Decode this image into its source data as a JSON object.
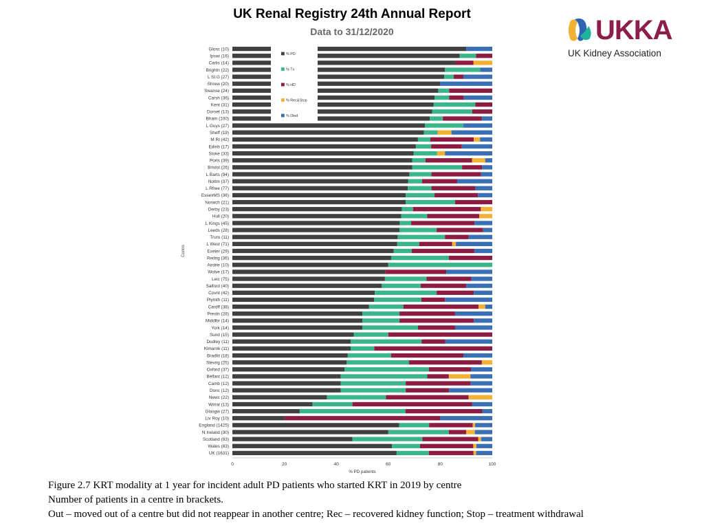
{
  "header": {
    "title": "UK Renal Registry 24th Annual Report",
    "subtitle": "Data to 31/12/2020"
  },
  "logo": {
    "wordmark": "UKKA",
    "caption": "UK Kidney Association",
    "colors": [
      "#f2b134",
      "#2f64b2",
      "#1fb59a",
      "#8b1e4a"
    ]
  },
  "captions": [
    "Figure 2.7 KRT modality at 1 year for incident adult PD patients who started KRT in 2019 by centre",
    "Number of patients in a centre in brackets.",
    "Out – moved out of a centre but did not reappear in another centre; Rec – recovered kidney function; Stop – treatment withdrawal"
  ],
  "chart_data": {
    "type": "bar",
    "orientation": "horizontal",
    "stacked": true,
    "xlabel": "% PD patients",
    "ylabel": "Centre",
    "xlim": [
      0,
      100
    ],
    "xticks": [
      0,
      20,
      40,
      60,
      80,
      100
    ],
    "legend_position": "top-left, inside plot",
    "series": [
      {
        "name": "% PD",
        "color": "#404040"
      },
      {
        "name": "% Tx",
        "color": "#3bb58a"
      },
      {
        "name": "% HD",
        "color": "#8c1c42"
      },
      {
        "name": "% Rec&Stop",
        "color": "#f2b134"
      },
      {
        "name": "% Died",
        "color": "#3a6fb3"
      }
    ],
    "categories": [
      "Glosc (10)",
      "Ipswi (16)",
      "Carlis (14)",
      "Brightn (22)",
      "L St.G (27)",
      "Shrew (20)",
      "Swanse (24)",
      "Carsh (36)",
      "Kent (31)",
      "Dorset (13)",
      "Bham (100)",
      "L Guys (27)",
      "Sheff (19)",
      "M RI (42)",
      "Edinb (17)",
      "Stoke (33)",
      "Ports (39)",
      "Bristol (26)",
      "L Barts (94)",
      "Nottm (37)",
      "L Rfree (77)",
      "EssexMS (36)",
      "Norwch (21)",
      "Derby (23)",
      "Hull (20)",
      "L Kings (45)",
      "Leeds (28)",
      "Truro (11)",
      "L West (71)",
      "Exeter (29)",
      "Redng (36)",
      "Airdrie (10)",
      "Wolve (17)",
      "Leic (75)",
      "Salford (40)",
      "Covnt (42)",
      "Plymth (11)",
      "Cardff (38)",
      "Prestn (28)",
      "Middlbr (14)",
      "York (14)",
      "Sund (15)",
      "Dudley (11)",
      "Klmarnk (11)",
      "Bradfd (18)",
      "Stevng (25)",
      "Oxford (37)",
      "Belfast (12)",
      "Camb (12)",
      "Donc (12)",
      "Newc (22)",
      "Wirral (13)",
      "Glasgw (27)",
      "Liv Roy (10)",
      "England (1425)",
      "N Ireland (30)",
      "Scotland (93)",
      "Wales (83)",
      "UK (1631)"
    ],
    "values": [
      [
        90,
        0,
        0,
        0,
        10
      ],
      [
        87.5,
        6.25,
        6.25,
        0,
        0
      ],
      [
        85.7,
        0,
        7.1,
        7.2,
        0
      ],
      [
        81.8,
        13.6,
        0,
        0,
        4.6
      ],
      [
        81.5,
        3.7,
        3.7,
        0,
        11.1
      ],
      [
        80,
        0,
        0,
        0,
        20
      ],
      [
        79.2,
        4.2,
        16.6,
        0,
        0
      ],
      [
        77.8,
        5.6,
        5.6,
        0,
        11
      ],
      [
        77.4,
        16.1,
        6.5,
        0,
        0
      ],
      [
        76.9,
        15.4,
        7.7,
        0,
        0
      ],
      [
        76,
        5,
        15,
        0,
        4
      ],
      [
        74.1,
        14.8,
        0,
        0,
        11.1
      ],
      [
        73.7,
        5.3,
        0,
        5.3,
        15.7
      ],
      [
        71.4,
        4.8,
        16.7,
        2.4,
        4.7
      ],
      [
        70.6,
        5.9,
        11.8,
        0,
        11.7
      ],
      [
        69.7,
        9.1,
        0,
        3,
        18.2
      ],
      [
        69.2,
        5.1,
        17.9,
        5.1,
        2.7
      ],
      [
        69.2,
        19.2,
        7.7,
        0,
        3.9
      ],
      [
        68.1,
        8.5,
        19.1,
        0,
        4.3
      ],
      [
        67.6,
        5.4,
        13.5,
        0,
        13.5
      ],
      [
        67.5,
        9.1,
        16.9,
        0,
        6.5
      ],
      [
        66.7,
        11.1,
        16.7,
        0,
        5.5
      ],
      [
        66.7,
        19,
        14.3,
        0,
        0
      ],
      [
        65.2,
        4.3,
        26.1,
        4.4,
        0
      ],
      [
        65,
        10,
        20,
        5,
        0
      ],
      [
        64.4,
        4.4,
        24.4,
        0,
        6.8
      ],
      [
        64.3,
        14.3,
        17.9,
        0,
        3.5
      ],
      [
        63.6,
        18.2,
        9.1,
        0,
        9.1
      ],
      [
        63.4,
        8.5,
        12.7,
        1.4,
        14
      ],
      [
        62.1,
        6.9,
        24.1,
        0,
        6.9
      ],
      [
        61.1,
        22.2,
        16.7,
        0,
        0
      ],
      [
        60,
        40,
        0,
        0,
        0
      ],
      [
        58.8,
        0,
        23.5,
        0,
        17.7
      ],
      [
        58.7,
        16,
        17.3,
        0,
        8
      ],
      [
        57.5,
        15,
        17.5,
        0,
        10
      ],
      [
        54.8,
        23.8,
        14.3,
        0,
        7.1
      ],
      [
        54.5,
        18.2,
        9.1,
        0,
        18.2
      ],
      [
        52.6,
        13.2,
        28.9,
        2.6,
        2.7
      ],
      [
        50,
        14.3,
        21.4,
        0,
        14.3
      ],
      [
        50,
        14.3,
        28.6,
        0,
        7.1
      ],
      [
        50,
        21.4,
        14.3,
        0,
        14.3
      ],
      [
        46.7,
        13.3,
        40,
        0,
        0
      ],
      [
        45.5,
        27.3,
        9.1,
        0,
        18.1
      ],
      [
        45.5,
        9.1,
        45.4,
        0,
        0
      ],
      [
        44.4,
        16.7,
        27.8,
        0,
        11.1
      ],
      [
        44,
        24,
        28,
        4,
        0
      ],
      [
        43.2,
        32.4,
        16.2,
        0,
        8.2
      ],
      [
        41.7,
        33.3,
        8.3,
        8.3,
        8.4
      ],
      [
        41.7,
        25,
        25,
        0,
        8.3
      ],
      [
        41.7,
        25,
        16.7,
        0,
        16.6
      ],
      [
        36.4,
        22.7,
        31.8,
        9.1,
        0
      ],
      [
        30.8,
        15.4,
        46.1,
        0,
        7.7
      ],
      [
        25.9,
        40.7,
        29.6,
        0,
        3.8
      ],
      [
        20,
        0,
        60,
        0,
        20
      ],
      [
        64.2,
        11.5,
        16.8,
        0.9,
        6.6
      ],
      [
        60,
        23.3,
        6.7,
        3.3,
        6.7
      ],
      [
        46.2,
        26.9,
        21.5,
        1.1,
        4.3
      ],
      [
        61.4,
        10.8,
        20.5,
        1.2,
        6.1
      ],
      [
        63.2,
        12.4,
        17.2,
        1,
        6.2
      ]
    ]
  }
}
